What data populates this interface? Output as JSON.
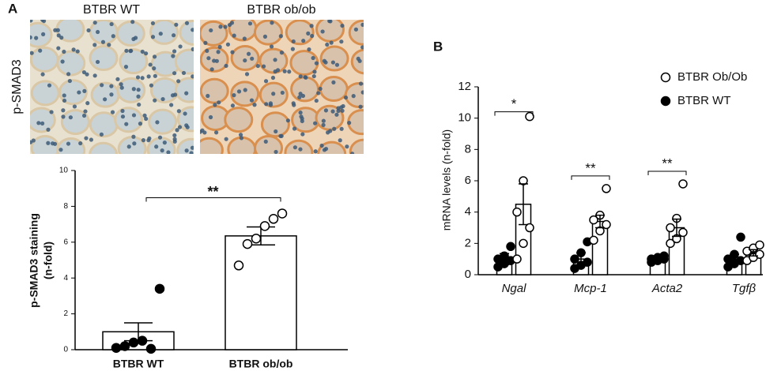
{
  "panel_a": {
    "label": "A",
    "image_labels": [
      "BTBR WT",
      "BTBR ob/ob"
    ],
    "image_ylabel": "p-SMAD3",
    "chart_data": {
      "type": "bar",
      "ylabel": [
        "p-SMAD3 staining",
        "(n-fold)"
      ],
      "categories": [
        "BTBR WT",
        "BTBR ob/ob"
      ],
      "values": [
        1.0,
        6.35
      ],
      "errors": [
        0.5,
        0.5
      ],
      "points": [
        [
          0.1,
          0.2,
          0.4,
          0.5,
          0.05,
          3.4
        ],
        [
          4.7,
          5.9,
          6.2,
          6.9,
          7.3,
          7.6
        ]
      ],
      "ylim": [
        0,
        10
      ],
      "yticks": [
        0,
        2,
        4,
        6,
        8,
        10
      ],
      "significance": "**"
    }
  },
  "panel_b": {
    "label": "B",
    "chart_data": {
      "type": "grouped_bar",
      "ylabel": "mRNA levels (n-fold)",
      "categories": [
        "Ngal",
        "Mcp-1",
        "Acta2",
        "Tgfβ"
      ],
      "series": [
        {
          "name": "BTBR WT",
          "marker": "filled",
          "values": [
            1.0,
            1.0,
            1.0,
            1.0
          ],
          "errors": [
            0.35,
            0.4,
            0.1,
            0.3
          ],
          "points": [
            [
              0.5,
              0.7,
              0.9,
              1.0,
              1.2,
              1.8
            ],
            [
              0.4,
              0.6,
              0.8,
              1.0,
              1.4,
              2.1
            ],
            [
              0.8,
              0.9,
              1.0,
              1.0,
              1.1,
              1.2
            ],
            [
              0.5,
              0.7,
              0.9,
              1.0,
              1.3,
              2.4
            ]
          ]
        },
        {
          "name": "BTBR Ob/Ob",
          "marker": "open",
          "values": [
            4.5,
            3.4,
            3.0,
            1.4
          ],
          "errors": [
            1.3,
            0.4,
            0.55,
            0.2
          ],
          "points": [
            [
              1.0,
              2.0,
              3.0,
              4.0,
              6.0,
              10.1
            ],
            [
              2.2,
              2.8,
              3.2,
              3.5,
              3.8,
              5.5
            ],
            [
              2.0,
              2.3,
              2.7,
              3.0,
              3.6,
              5.8
            ],
            [
              0.9,
              1.1,
              1.3,
              1.5,
              1.7,
              1.9
            ]
          ]
        }
      ],
      "legend_order": [
        1,
        0
      ],
      "ylim": [
        0,
        12
      ],
      "yticks": [
        0,
        2,
        4,
        6,
        8,
        10,
        12
      ],
      "significance": [
        "*",
        "**",
        "**",
        null
      ]
    }
  }
}
